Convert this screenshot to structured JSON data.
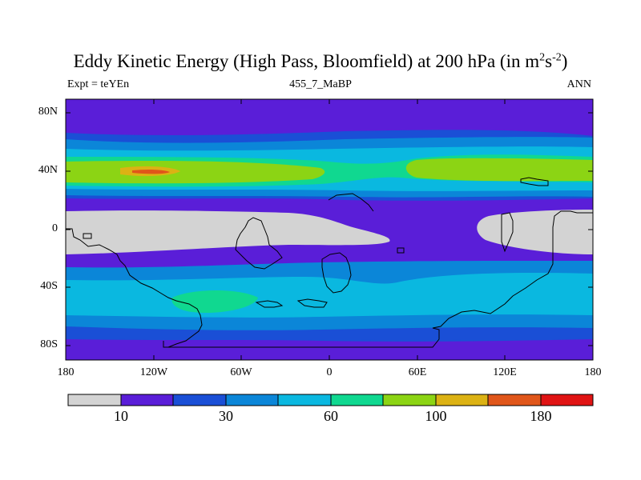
{
  "plot": {
    "title_main": "Eddy Kinetic Energy (High Pass, Bloomfield) at 200 hPa (in m",
    "title_sup1": "2",
    "title_mid": "s",
    "title_sup2": "-2",
    "title_end": ")",
    "left_string": "Expt = teYEn",
    "center_string": "455_7_MaBP",
    "right_string": "ANN"
  },
  "map": {
    "projection": "cylindrical-equidistant",
    "lon_range": [
      -180,
      180
    ],
    "lat_range": [
      -90,
      90
    ],
    "lat_tick_labels": [
      "80N",
      "40N",
      "0",
      "40S",
      "80S"
    ],
    "lon_tick_labels": [
      "180",
      "120W",
      "60W",
      "0",
      "60E",
      "120E",
      "180"
    ]
  },
  "colorbar": {
    "colors": [
      "#d3d3d3",
      "#5a1ed8",
      "#1a4fd6",
      "#0b86d8",
      "#0ab8e0",
      "#10d890",
      "#8cd414",
      "#dcb214",
      "#e0561a",
      "#e01414"
    ],
    "labels": [
      "10",
      "30",
      "60",
      "100",
      "180"
    ]
  },
  "colors": {
    "missing": "#d3d3d3",
    "c1": "#5a1ed8",
    "c2": "#1a4fd6",
    "c3": "#0b86d8",
    "c4": "#0ab8e0",
    "c5": "#10d890",
    "c6": "#8cd414",
    "c7": "#dcb214",
    "c8": "#e0561a"
  }
}
